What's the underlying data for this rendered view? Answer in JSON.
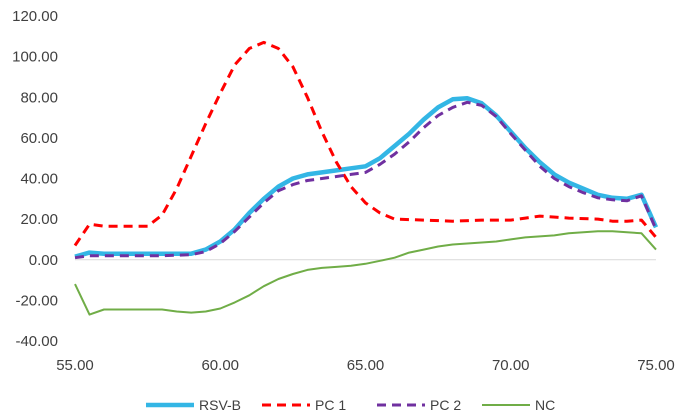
{
  "chart_data": {
    "type": "line",
    "title": "",
    "xlabel": "",
    "ylabel": "",
    "xlim": [
      55.0,
      75.0
    ],
    "ylim": [
      -40.0,
      120.0
    ],
    "x_ticks": [
      55.0,
      60.0,
      65.0,
      70.0,
      75.0
    ],
    "y_ticks": [
      -40.0,
      -20.0,
      0.0,
      20.0,
      40.0,
      60.0,
      80.0,
      100.0,
      120.0
    ],
    "x_tick_labels": [
      "55.00",
      "60.00",
      "65.00",
      "70.00",
      "75.00"
    ],
    "y_tick_labels": [
      "-40.00",
      "-20.00",
      "0.00",
      "20.00",
      "40.00",
      "60.00",
      "80.00",
      "100.00",
      "120.00"
    ],
    "grid": false,
    "legend_position": "bottom",
    "series": [
      {
        "name": "RSV-B",
        "color": "#33b6e5",
        "style": "solid-thick",
        "points": [
          [
            55.0,
            1.5
          ],
          [
            55.5,
            3.5
          ],
          [
            56.0,
            3.0
          ],
          [
            57.0,
            3.0
          ],
          [
            58.0,
            3.0
          ],
          [
            59.0,
            3.0
          ],
          [
            59.5,
            5.0
          ],
          [
            60.0,
            9.0
          ],
          [
            60.5,
            15.0
          ],
          [
            61.0,
            23.0
          ],
          [
            61.5,
            30.0
          ],
          [
            62.0,
            36.0
          ],
          [
            62.5,
            40.0
          ],
          [
            63.0,
            42.0
          ],
          [
            63.5,
            43.0
          ],
          [
            64.0,
            44.0
          ],
          [
            64.5,
            45.0
          ],
          [
            65.0,
            46.0
          ],
          [
            65.5,
            50.0
          ],
          [
            66.0,
            56.0
          ],
          [
            66.5,
            62.0
          ],
          [
            67.0,
            69.0
          ],
          [
            67.5,
            75.0
          ],
          [
            68.0,
            79.0
          ],
          [
            68.5,
            79.5
          ],
          [
            69.0,
            77.0
          ],
          [
            69.5,
            71.0
          ],
          [
            70.0,
            63.0
          ],
          [
            70.5,
            55.0
          ],
          [
            71.0,
            48.0
          ],
          [
            71.5,
            42.0
          ],
          [
            72.0,
            38.0
          ],
          [
            72.5,
            35.0
          ],
          [
            73.0,
            32.0
          ],
          [
            73.5,
            30.5
          ],
          [
            74.0,
            30.0
          ],
          [
            74.5,
            32.0
          ],
          [
            75.0,
            16.0
          ]
        ]
      },
      {
        "name": "PC 1",
        "color": "#ff0000",
        "style": "dashed",
        "points": [
          [
            55.0,
            7.0
          ],
          [
            55.5,
            17.5
          ],
          [
            56.0,
            16.5
          ],
          [
            57.0,
            16.5
          ],
          [
            57.5,
            16.5
          ],
          [
            58.0,
            22.0
          ],
          [
            58.5,
            35.0
          ],
          [
            59.0,
            51.0
          ],
          [
            59.5,
            67.0
          ],
          [
            60.0,
            82.0
          ],
          [
            60.5,
            96.0
          ],
          [
            61.0,
            104.0
          ],
          [
            61.5,
            107.0
          ],
          [
            62.0,
            104.0
          ],
          [
            62.5,
            95.0
          ],
          [
            63.0,
            80.0
          ],
          [
            63.5,
            63.0
          ],
          [
            64.0,
            48.0
          ],
          [
            64.5,
            36.0
          ],
          [
            65.0,
            28.0
          ],
          [
            65.5,
            23.0
          ],
          [
            66.0,
            20.0
          ],
          [
            67.0,
            19.5
          ],
          [
            68.0,
            19.0
          ],
          [
            69.0,
            19.5
          ],
          [
            70.0,
            19.5
          ],
          [
            70.5,
            20.5
          ],
          [
            71.0,
            21.5
          ],
          [
            72.0,
            20.5
          ],
          [
            73.0,
            20.0
          ],
          [
            73.5,
            19.0
          ],
          [
            74.0,
            19.0
          ],
          [
            74.5,
            19.5
          ],
          [
            75.0,
            11.0
          ]
        ]
      },
      {
        "name": "PC 2",
        "color": "#7030a0",
        "style": "dashed",
        "points": [
          [
            55.0,
            1.0
          ],
          [
            55.5,
            2.0
          ],
          [
            56.0,
            2.0
          ],
          [
            57.0,
            2.0
          ],
          [
            58.0,
            2.0
          ],
          [
            59.0,
            2.5
          ],
          [
            59.5,
            4.0
          ],
          [
            60.0,
            8.0
          ],
          [
            60.5,
            14.0
          ],
          [
            61.0,
            21.0
          ],
          [
            61.5,
            28.0
          ],
          [
            62.0,
            34.0
          ],
          [
            62.5,
            37.0
          ],
          [
            63.0,
            39.0
          ],
          [
            63.5,
            40.0
          ],
          [
            64.0,
            41.0
          ],
          [
            64.5,
            42.0
          ],
          [
            65.0,
            43.0
          ],
          [
            65.5,
            47.0
          ],
          [
            66.0,
            52.0
          ],
          [
            66.5,
            58.0
          ],
          [
            67.0,
            65.0
          ],
          [
            67.5,
            71.0
          ],
          [
            68.0,
            75.0
          ],
          [
            68.5,
            77.5
          ],
          [
            69.0,
            76.0
          ],
          [
            69.5,
            70.5
          ],
          [
            70.0,
            62.0
          ],
          [
            70.5,
            54.0
          ],
          [
            71.0,
            46.0
          ],
          [
            71.5,
            40.0
          ],
          [
            72.0,
            36.0
          ],
          [
            72.5,
            33.0
          ],
          [
            73.0,
            30.5
          ],
          [
            73.5,
            29.5
          ],
          [
            74.0,
            29.0
          ],
          [
            74.5,
            31.5
          ],
          [
            75.0,
            15.0
          ]
        ]
      },
      {
        "name": "NC",
        "color": "#70ad47",
        "style": "solid",
        "points": [
          [
            55.0,
            -12.0
          ],
          [
            55.5,
            -27.0
          ],
          [
            56.0,
            -24.5
          ],
          [
            57.0,
            -24.5
          ],
          [
            58.0,
            -24.5
          ],
          [
            58.5,
            -25.5
          ],
          [
            59.0,
            -26.0
          ],
          [
            59.5,
            -25.5
          ],
          [
            60.0,
            -24.0
          ],
          [
            60.5,
            -21.0
          ],
          [
            61.0,
            -17.5
          ],
          [
            61.5,
            -13.0
          ],
          [
            62.0,
            -9.5
          ],
          [
            62.5,
            -7.0
          ],
          [
            63.0,
            -5.0
          ],
          [
            63.5,
            -4.0
          ],
          [
            64.0,
            -3.5
          ],
          [
            64.5,
            -3.0
          ],
          [
            65.0,
            -2.0
          ],
          [
            65.5,
            -0.5
          ],
          [
            66.0,
            1.0
          ],
          [
            66.5,
            3.5
          ],
          [
            67.0,
            5.0
          ],
          [
            67.5,
            6.5
          ],
          [
            68.0,
            7.5
          ],
          [
            68.5,
            8.0
          ],
          [
            69.0,
            8.5
          ],
          [
            69.5,
            9.0
          ],
          [
            70.0,
            10.0
          ],
          [
            70.5,
            11.0
          ],
          [
            71.0,
            11.5
          ],
          [
            71.5,
            12.0
          ],
          [
            72.0,
            13.0
          ],
          [
            72.5,
            13.5
          ],
          [
            73.0,
            14.0
          ],
          [
            73.5,
            14.0
          ],
          [
            74.0,
            13.5
          ],
          [
            74.5,
            13.0
          ],
          [
            75.0,
            5.0
          ]
        ]
      }
    ]
  }
}
